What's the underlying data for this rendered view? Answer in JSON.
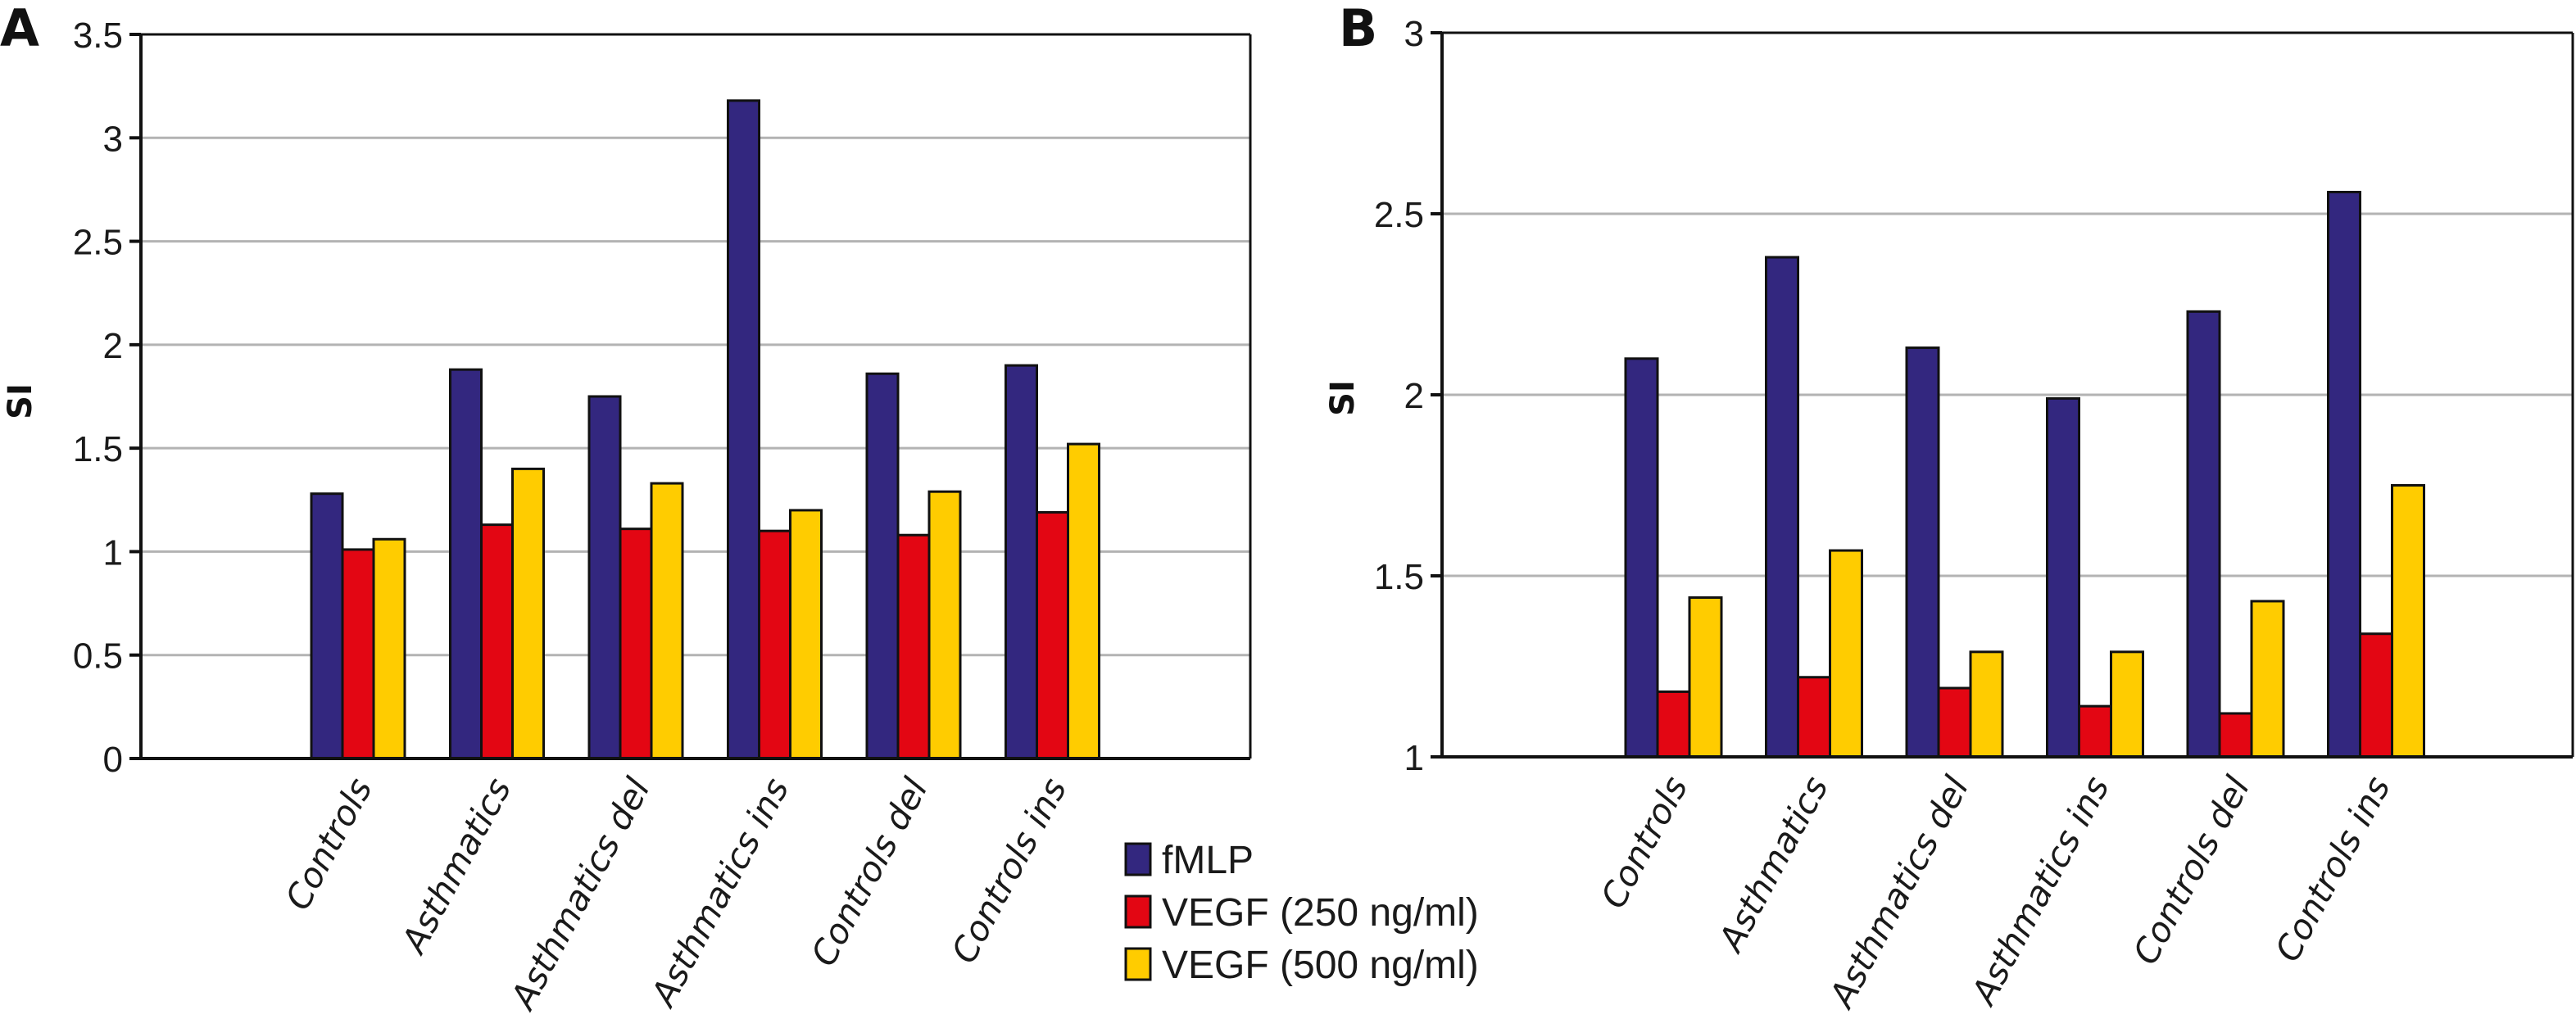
{
  "figure": {
    "legend": [
      {
        "label": "fMLP",
        "color": "#33277f"
      },
      {
        "label": "VEGF (250 ng/ml)",
        "color": "#e30613"
      },
      {
        "label": "VEGF (500 ng/ml)",
        "color": "#ffcc00"
      }
    ]
  },
  "chart_data": [
    {
      "type": "bar",
      "panel": "A",
      "title": "",
      "xlabel": "",
      "ylabel": "SI",
      "ylim": [
        0,
        3.5
      ],
      "yticks": [
        "0",
        "0.5",
        "1",
        "1.5",
        "2",
        "2.5",
        "3",
        "3.5"
      ],
      "ytick_values": [
        0,
        0.5,
        1,
        1.5,
        2,
        2.5,
        3,
        3.5
      ],
      "grid": true,
      "legend_placement": "bottom-center",
      "categories": [
        "Controls",
        "Asthmatics",
        "Asthmatics del",
        "Asthmatics ins",
        "Controls del",
        "Controls ins"
      ],
      "series": [
        {
          "name": "fMLP",
          "color": "#33277f",
          "values": [
            1.28,
            1.88,
            1.75,
            3.18,
            1.86,
            1.9
          ]
        },
        {
          "name": "VEGF (250 ng/ml)",
          "color": "#e30613",
          "values": [
            1.01,
            1.13,
            1.11,
            1.1,
            1.08,
            1.19
          ]
        },
        {
          "name": "VEGF (500 ng/ml)",
          "color": "#ffcc00",
          "values": [
            1.06,
            1.4,
            1.33,
            1.2,
            1.29,
            1.52
          ]
        }
      ]
    },
    {
      "type": "bar",
      "panel": "B",
      "title": "",
      "xlabel": "",
      "ylabel": "SI",
      "ylim": [
        1,
        3
      ],
      "yticks": [
        "1",
        "1.5",
        "2",
        "2.5",
        "3"
      ],
      "ytick_values": [
        1,
        1.5,
        2,
        2.5,
        3
      ],
      "grid": true,
      "categories": [
        "Controls",
        "Asthmatics",
        "Asthmatics del",
        "Asthmatics ins",
        "Controls del",
        "Controls ins"
      ],
      "series": [
        {
          "name": "fMLP",
          "color": "#33277f",
          "values": [
            2.1,
            2.38,
            2.13,
            1.99,
            2.23,
            2.56
          ]
        },
        {
          "name": "VEGF (250 ng/ml)",
          "color": "#e30613",
          "values": [
            1.18,
            1.22,
            1.19,
            1.14,
            1.12,
            1.34
          ]
        },
        {
          "name": "VEGF (500 ng/ml)",
          "color": "#ffcc00",
          "values": [
            1.44,
            1.57,
            1.29,
            1.29,
            1.43,
            1.75
          ]
        }
      ]
    }
  ]
}
